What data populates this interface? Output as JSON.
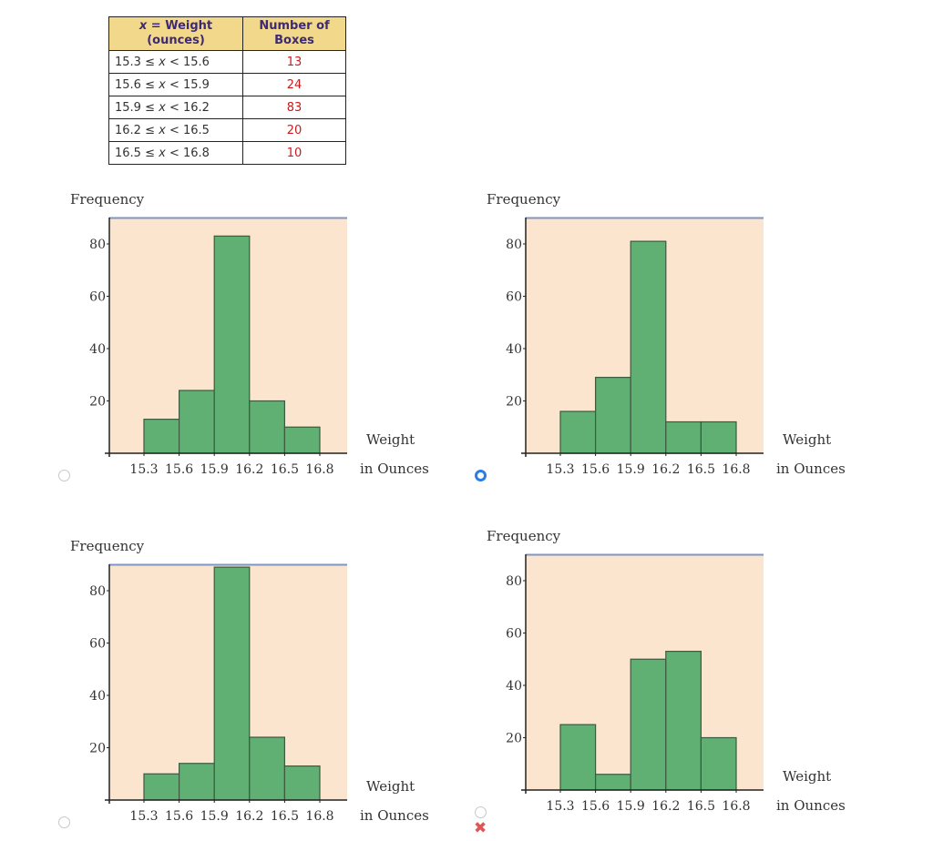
{
  "table": {
    "headers": [
      "x = Weight\n(ounces)",
      "Number of\nBoxes"
    ],
    "header_col1_var": "x",
    "header_col1_rest": " = Weight",
    "header_col1_line2": "(ounces)",
    "header_col2_line1": "Number of",
    "header_col2_line2": "Boxes",
    "rows": [
      {
        "lo": "15.3 ≤ ",
        "var": "x",
        "hi": " < 15.6",
        "count": "13"
      },
      {
        "lo": "15.6 ≤ ",
        "var": "x",
        "hi": " < 15.9",
        "count": "24"
      },
      {
        "lo": "15.9 ≤ ",
        "var": "x",
        "hi": " < 16.2",
        "count": "83"
      },
      {
        "lo": "16.2 ≤ ",
        "var": "x",
        "hi": " < 16.5",
        "count": "20"
      },
      {
        "lo": "16.5 ≤ ",
        "var": "x",
        "hi": " < 16.8",
        "count": "10"
      }
    ]
  },
  "colors": {
    "bar_fill": "#5fb072",
    "bar_stroke": "#3b5a40",
    "plot_bg": "#fbe5cf",
    "plot_top_line": "#7f95c4",
    "header_bg": "#f2d88a",
    "header_text": "#3d2a74",
    "count_text": "#cc1a1a",
    "radio_selected": "#2b7ce9",
    "wrong_mark": "#e05555"
  },
  "options": [
    {
      "selected": false,
      "marked_wrong": false
    },
    {
      "selected": true,
      "marked_wrong": false
    },
    {
      "selected": false,
      "marked_wrong": false
    },
    {
      "selected": false,
      "marked_wrong": true,
      "mark_icon": "✖"
    }
  ],
  "chart_data": [
    {
      "type": "bar",
      "title": "",
      "ylabel": "Frequency",
      "xlabel_line1": "Weight",
      "xlabel_line2": "in Ounces",
      "x_ticks": [
        "15.3",
        "15.6",
        "15.9",
        "16.2",
        "16.5",
        "16.8"
      ],
      "y_ticks": [
        "20",
        "40",
        "60",
        "80"
      ],
      "categories": [
        "15.3–15.6",
        "15.6–15.9",
        "15.9–16.2",
        "16.2–16.5",
        "16.5–16.8"
      ],
      "values": [
        13,
        24,
        83,
        20,
        10
      ],
      "ylim": [
        0,
        90
      ]
    },
    {
      "type": "bar",
      "title": "",
      "ylabel": "Frequency",
      "xlabel_line1": "Weight",
      "xlabel_line2": "in Ounces",
      "x_ticks": [
        "15.3",
        "15.6",
        "15.9",
        "16.2",
        "16.5",
        "16.8"
      ],
      "y_ticks": [
        "20",
        "40",
        "60",
        "80"
      ],
      "categories": [
        "15.3–15.6",
        "15.6–15.9",
        "15.9–16.2",
        "16.2–16.5",
        "16.5–16.8"
      ],
      "values": [
        16,
        29,
        81,
        12,
        12
      ],
      "ylim": [
        0,
        90
      ]
    },
    {
      "type": "bar",
      "title": "",
      "ylabel": "Frequency",
      "xlabel_line1": "Weight",
      "xlabel_line2": "in Ounces",
      "x_ticks": [
        "15.3",
        "15.6",
        "15.9",
        "16.2",
        "16.5",
        "16.8"
      ],
      "y_ticks": [
        "20",
        "40",
        "60",
        "80"
      ],
      "categories": [
        "15.3–15.6",
        "15.6–15.9",
        "15.9–16.2",
        "16.2–16.5",
        "16.5–16.8"
      ],
      "values": [
        10,
        14,
        89,
        24,
        13
      ],
      "ylim": [
        0,
        90
      ]
    },
    {
      "type": "bar",
      "title": "",
      "ylabel": "Frequency",
      "xlabel_line1": "Weight",
      "xlabel_line2": "in Ounces",
      "x_ticks": [
        "15.3",
        "15.6",
        "15.9",
        "16.2",
        "16.5",
        "16.8"
      ],
      "y_ticks": [
        "20",
        "40",
        "60",
        "80"
      ],
      "categories": [
        "15.3–15.6",
        "15.6–15.9",
        "15.9–16.2",
        "16.2–16.5",
        "16.5–16.8"
      ],
      "values": [
        25,
        6,
        50,
        53,
        20
      ],
      "ylim": [
        0,
        90
      ]
    }
  ]
}
